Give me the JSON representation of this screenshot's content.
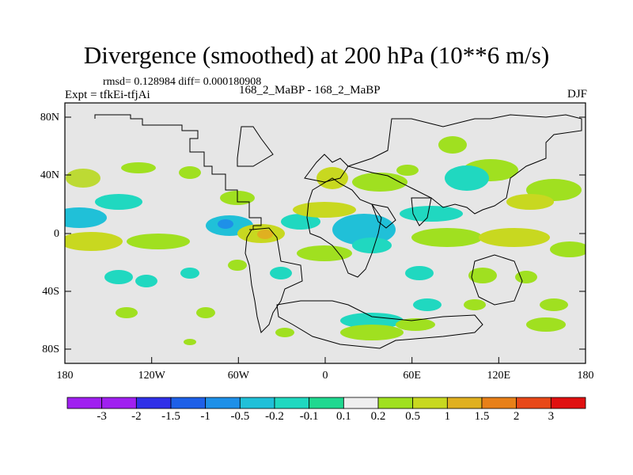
{
  "title": "Divergence (smoothed) at 200 hPa (10**6 m/s)",
  "stats_line": "rmsd= 0.128984  diff= 0.000180908",
  "experiment": "Expt = tfkEi-tfjAi",
  "runs": "168_2_MaBP - 168_2_MaBP",
  "season": "DJF",
  "lat_labels": [
    "80N",
    "40N",
    "0",
    "40S",
    "80S"
  ],
  "lon_labels": [
    "180",
    "120W",
    "60W",
    "0",
    "60E",
    "120E",
    "180"
  ],
  "colorbar": {
    "labels": [
      "-3",
      "-2",
      "-1.5",
      "-1",
      "-0.5",
      "-0.2",
      "-0.1",
      "0.1",
      "0.2",
      "0.5",
      "1",
      "1.5",
      "2",
      "3"
    ],
    "colors": [
      "#a020f0",
      "#3030e8",
      "#1e60e8",
      "#1e90e8",
      "#20c0d8",
      "#20d8c0",
      "#20d890",
      "#eeeeee",
      "#a0e020",
      "#c8d820",
      "#e0b020",
      "#e88018",
      "#e84818",
      "#e01010"
    ]
  },
  "map_background": "#e6e6e6"
}
